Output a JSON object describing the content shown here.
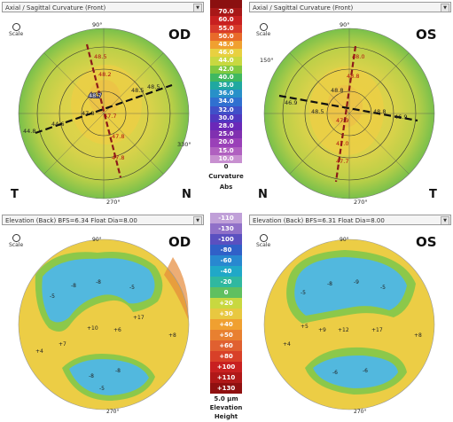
{
  "top_left": {
    "dropdown": "Axial / Sagittal Curvature (Front)",
    "eye": "OD",
    "left_letter": "T",
    "right_letter": "N",
    "zoom_label": "Scale"
  },
  "top_right": {
    "dropdown": "Axial / Sagittal Curvature (Front)",
    "eye": "OS",
    "left_letter": "N",
    "right_letter": "T",
    "zoom_label": "Scale"
  },
  "bottom_left": {
    "dropdown": "Elevation (Back) BFS=6.34 Float Dia=8.00",
    "eye": "OD",
    "zoom_label": "Scale"
  },
  "bottom_right": {
    "dropdown": "Elevation (Back) BFS=6.31 Float Dia=8.00",
    "eye": "OS",
    "zoom_label": "Scale"
  },
  "curv_scale": {
    "values": [
      "",
      "70.0",
      "60.0",
      "55.0",
      "50.0",
      "48.0",
      "46.0",
      "44.0",
      "42.0",
      "40.0",
      "38.0",
      "36.0",
      "34.0",
      "32.0",
      "30.0",
      "28.0",
      "25.0",
      "20.0",
      "15.0",
      "10.0"
    ],
    "bottom_value": "0",
    "label": "Curvature",
    "unit": "Abs"
  },
  "elev_scale": {
    "values": [
      "-110",
      "-130",
      "-100",
      "-80",
      "-60",
      "-40",
      "-20",
      "0",
      "+20",
      "+30",
      "+40",
      "+50",
      "+60",
      "+80",
      "+100",
      "+110",
      "+130"
    ],
    "unit": "5.0 µm",
    "label1": "Elevation",
    "label2": "Height"
  },
  "colors": {
    "yellow": "#e8d84a",
    "green": "#8cc84a",
    "orange": "#e89a3a",
    "blue": "#4fb8e0",
    "meridian": "#8b1a1a"
  }
}
